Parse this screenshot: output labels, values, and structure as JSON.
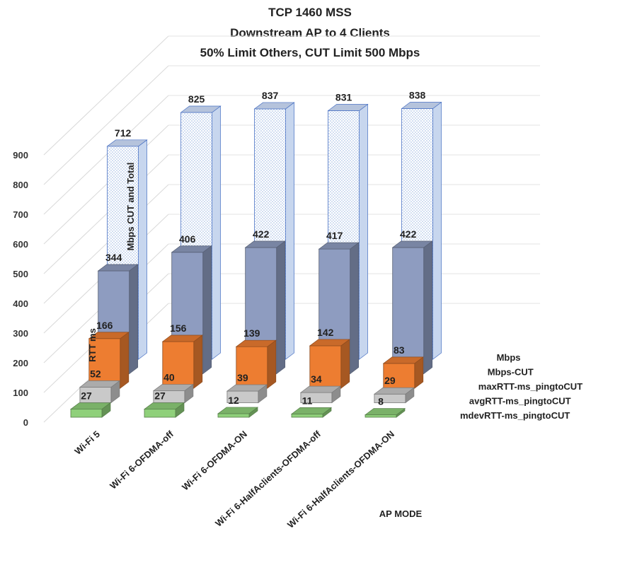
{
  "chart_data": {
    "type": "bar",
    "variant": "3d-stacked-depth-columns",
    "title_lines": [
      "TCP 1460 MSS",
      "Downstream AP to 4 Clients",
      "50% Limit Others, CUT Limit 500 Mbps"
    ],
    "categories": [
      "Wi-Fi 5",
      "Wi-Fi 6-OFDMA-off",
      "Wi-Fi 6-OFDMA-ON",
      "Wi-Fi 6-HalfAclients-OFDMA-off",
      "Wi-Fi 6-HalfAclients-OFDMA-ON"
    ],
    "series": [
      {
        "name": "Mbps",
        "values": [
          712,
          825,
          837,
          831,
          838
        ],
        "color": "#dbe6f7",
        "style": "dotted"
      },
      {
        "name": "Mbps-CUT",
        "values": [
          344,
          406,
          422,
          417,
          422
        ],
        "color": "#8e9cc0"
      },
      {
        "name": "maxRTT-ms_pingtoCUT",
        "values": [
          166,
          156,
          139,
          142,
          83
        ],
        "color": "#ed7d31"
      },
      {
        "name": "avgRTT-ms_pingtoCUT",
        "values": [
          52,
          40,
          39,
          34,
          29
        ],
        "color": "#c9c9c9"
      },
      {
        "name": "mdevRTT-ms_pingtoCUT",
        "values": [
          27,
          27,
          12,
          11,
          8
        ],
        "color": "#8fd07a"
      }
    ],
    "y_ticks": [
      0,
      100,
      200,
      300,
      400,
      500,
      600,
      700,
      800,
      900
    ],
    "ylim": [
      0,
      900
    ],
    "xlabel": "AP MODE",
    "ylabel_front": "RTT ms",
    "ylabel_back": "Mbps CUT and Total",
    "grid": true
  }
}
